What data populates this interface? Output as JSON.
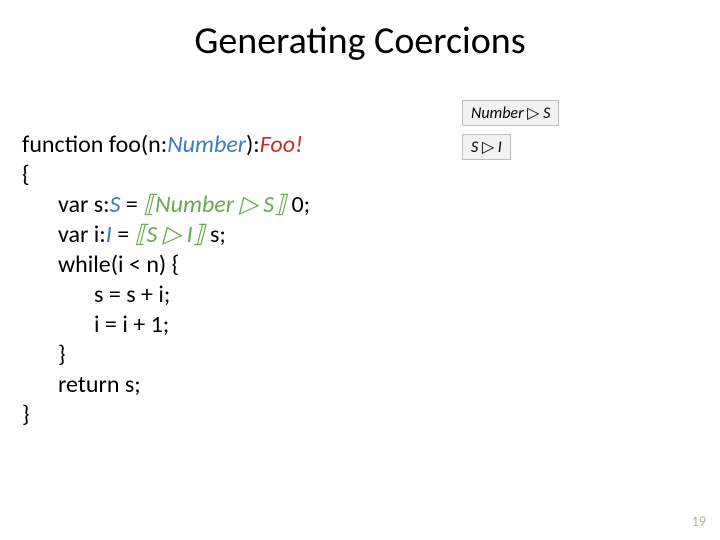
{
  "slide": {
    "title": "Generating Coercions",
    "page_number": "19",
    "background_color": "#ffffff"
  },
  "code": {
    "l1a": "function foo(n:",
    "l1b": "Number",
    "l1c": "):",
    "l1d": "Foo!",
    "l2": "{",
    "l3a": "var s:",
    "l3b": "S",
    "l3c": " = ",
    "l3d": "⟦Number ▷ S⟧",
    "l3e": " 0;",
    "l4a": "var i:",
    "l4b": "I",
    "l4c": " = ",
    "l4d": "⟦S ▷ I⟧",
    "l4e": " s;",
    "l5": "while(i < n) {",
    "l6": "s = s + i;",
    "l7": "i = i + 1;",
    "l8": "}",
    "l9": "return s;",
    "l10": "}"
  },
  "badges": {
    "b1_pre": "Number ",
    "b1_tri": "▷",
    "b1_post": " S",
    "b2_pre": "S ",
    "b2_tri": "▷",
    "b2_post": " I"
  },
  "colors": {
    "blue": "#3b7bbf",
    "red": "#c0302a",
    "green": "#6aa84f",
    "badge_bg": "#f2f2f2",
    "badge_border": "#bfbfbf",
    "pagenum": "#b9b19a",
    "text": "#000000"
  },
  "typography": {
    "title_fontsize": 38,
    "body_fontsize": 24,
    "badge_fontsize": 16,
    "pagenum_fontsize": 14,
    "font_family": "Calibri"
  }
}
